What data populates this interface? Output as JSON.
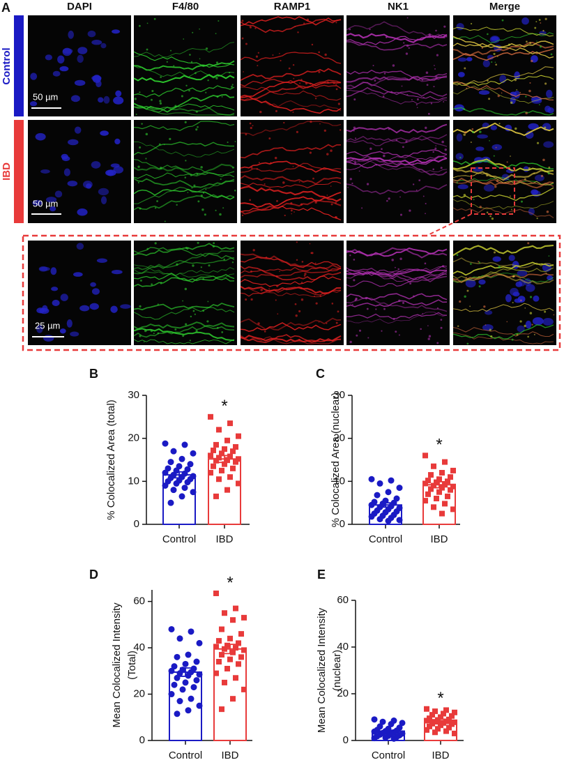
{
  "panel_a": {
    "label": "A",
    "columns": [
      "DAPI",
      "F4/80",
      "RAMP1",
      "NK1",
      "Merge"
    ],
    "rows": [
      "Control",
      "IBD"
    ],
    "scale_bars": [
      "50 µm",
      "50 µm",
      "25 µm"
    ]
  },
  "chart_data": [
    {
      "type": "bar",
      "label": "B",
      "ylabel": [
        "% Colocalized Area (total)"
      ],
      "categories": [
        "Control",
        "IBD"
      ],
      "colors": [
        "#1a1ac4",
        "#e83a3a"
      ],
      "markers": [
        "circle",
        "square"
      ],
      "values": [
        11.5,
        15.2
      ],
      "errors": [
        0.7,
        0.8
      ],
      "significance": "*",
      "points": [
        [
          18.8,
          18.5,
          17,
          16.5,
          15.2,
          14.5,
          14,
          13.5,
          13,
          12.8,
          12.5,
          12,
          11.8,
          11.5,
          11.2,
          11,
          10.8,
          10.5,
          10.2,
          10,
          9.8,
          9.5,
          9,
          8.5,
          8,
          7.5,
          6.5,
          5
        ],
        [
          25,
          23.5,
          22,
          20.5,
          19.5,
          18.5,
          18,
          17.5,
          17.2,
          17,
          16.5,
          16,
          15.8,
          15.5,
          15.2,
          15,
          14.8,
          14.5,
          14,
          13.5,
          13,
          12.5,
          12,
          11,
          10.5,
          9.5,
          8,
          6.5
        ]
      ],
      "ylim": [
        0,
        30
      ],
      "yticks": [
        0,
        10,
        20,
        30
      ]
    },
    {
      "type": "bar",
      "label": "C",
      "ylabel": [
        "% Colocalized Area (nuclear)"
      ],
      "categories": [
        "Control",
        "IBD"
      ],
      "colors": [
        "#1a1ac4",
        "#e83a3a"
      ],
      "markers": [
        "circle",
        "square"
      ],
      "values": [
        4.5,
        9.2
      ],
      "errors": [
        0.5,
        0.7
      ],
      "significance": "*",
      "points": [
        [
          10.5,
          10.2,
          9.5,
          8.5,
          7.5,
          6.8,
          6,
          5.5,
          5.2,
          5,
          4.8,
          4.5,
          4.2,
          4,
          3.8,
          3.5,
          3.2,
          3,
          2.8,
          2.5,
          2.2,
          2,
          1.8,
          1.5,
          1.2,
          1,
          0.8
        ],
        [
          16,
          14.5,
          13.5,
          12.5,
          12,
          11.5,
          11,
          10.5,
          10.2,
          10,
          9.8,
          9.5,
          9.2,
          9,
          8.8,
          8.5,
          8.2,
          8,
          7.5,
          7,
          6.5,
          6,
          5.5,
          4.8,
          4,
          3.5,
          2.5
        ]
      ],
      "ylim": [
        0,
        30
      ],
      "yticks": [
        0,
        10,
        20,
        30
      ]
    },
    {
      "type": "bar",
      "label": "D",
      "ylabel": [
        "Mean Colocalized  Intensity",
        "(Total)"
      ],
      "categories": [
        "Control",
        "IBD"
      ],
      "colors": [
        "#1a1ac4",
        "#e83a3a"
      ],
      "markers": [
        "circle",
        "square"
      ],
      "values": [
        29.5,
        39.5
      ],
      "errors": [
        1.8,
        2
      ],
      "significance": "*",
      "points": [
        [
          48,
          47,
          44,
          42,
          37,
          36,
          34,
          33,
          32,
          31,
          30.5,
          30,
          29.5,
          29,
          28.5,
          28,
          27,
          26,
          25,
          24,
          23,
          22,
          20,
          18,
          17,
          15,
          13,
          11.5
        ],
        [
          63.5,
          57,
          55,
          53,
          52,
          48,
          46,
          44,
          43,
          42,
          41,
          40.5,
          40,
          39.5,
          39,
          38,
          37,
          36,
          35,
          34,
          33,
          31,
          29,
          27,
          25,
          22,
          18,
          13.5
        ]
      ],
      "ylim": [
        0,
        65
      ],
      "yticks": [
        0,
        20,
        40,
        60
      ]
    },
    {
      "type": "bar",
      "label": "E",
      "ylabel": [
        "Mean Colocalized  Intensity",
        "(nuclear)"
      ],
      "categories": [
        "Control",
        "IBD"
      ],
      "colors": [
        "#1a1ac4",
        "#e83a3a"
      ],
      "markers": [
        "circle",
        "square"
      ],
      "values": [
        4,
        7.8
      ],
      "errors": [
        0.4,
        0.5
      ],
      "significance": "*",
      "points": [
        [
          9,
          8.5,
          8,
          7.5,
          7,
          6,
          5.5,
          5,
          4.5,
          4.2,
          4,
          3.8,
          3.5,
          3.2,
          3,
          2.8,
          2.5,
          2.2,
          2,
          1.8,
          1.5,
          1.2,
          1,
          0.8
        ],
        [
          13.5,
          13,
          12.5,
          12,
          11.5,
          11,
          10.5,
          10,
          9.5,
          9,
          8.8,
          8.5,
          8.2,
          8,
          7.8,
          7.5,
          7.2,
          7,
          6.5,
          6,
          5.5,
          5,
          4.5,
          4,
          3.5,
          3
        ]
      ],
      "ylim": [
        0,
        60
      ],
      "yticks": [
        0,
        20,
        40,
        60
      ]
    }
  ]
}
